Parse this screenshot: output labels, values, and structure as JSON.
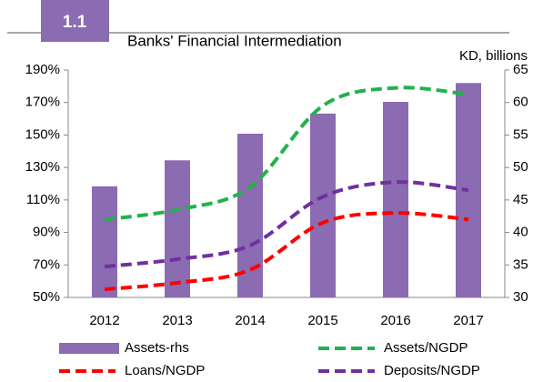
{
  "chart_data": {
    "type": "bar",
    "badge": "1.1",
    "title": "Banks' Financial Intermediation",
    "y2_label": "KD, billions",
    "categories": [
      "2012",
      "2013",
      "2014",
      "2015",
      "2016",
      "2017"
    ],
    "series": [
      {
        "name": "Assets-rhs",
        "type": "bar",
        "axis": "y2",
        "color": "#8b6bb1",
        "values": [
          47.1,
          51.1,
          55.2,
          58.3,
          60.1,
          63.0
        ]
      },
      {
        "name": "Assets/NGDP",
        "type": "line",
        "color": "#22b14c",
        "values": [
          98,
          104,
          118,
          168,
          179,
          175
        ]
      },
      {
        "name": "Loans/NGDP",
        "type": "line",
        "color": "#ff0000",
        "values": [
          55,
          59,
          67,
          96,
          102,
          98
        ]
      },
      {
        "name": "Deposits/NGDP",
        "type": "line",
        "color": "#7030a0",
        "values": [
          69,
          73.5,
          82,
          112,
          121,
          116
        ]
      }
    ],
    "ylim": [
      50,
      190
    ],
    "yticks": [
      {
        "value": 50,
        "label": "50%"
      },
      {
        "value": 70,
        "label": "70%"
      },
      {
        "value": 90,
        "label": "90%"
      },
      {
        "value": 110,
        "label": "110%"
      },
      {
        "value": 130,
        "label": "130%"
      },
      {
        "value": 150,
        "label": "150%"
      },
      {
        "value": 170,
        "label": "170%"
      },
      {
        "value": 190,
        "label": "190%"
      }
    ],
    "y2lim": [
      30,
      65
    ],
    "y2ticks": [
      30,
      35,
      40,
      45,
      50,
      55,
      60,
      65
    ]
  }
}
